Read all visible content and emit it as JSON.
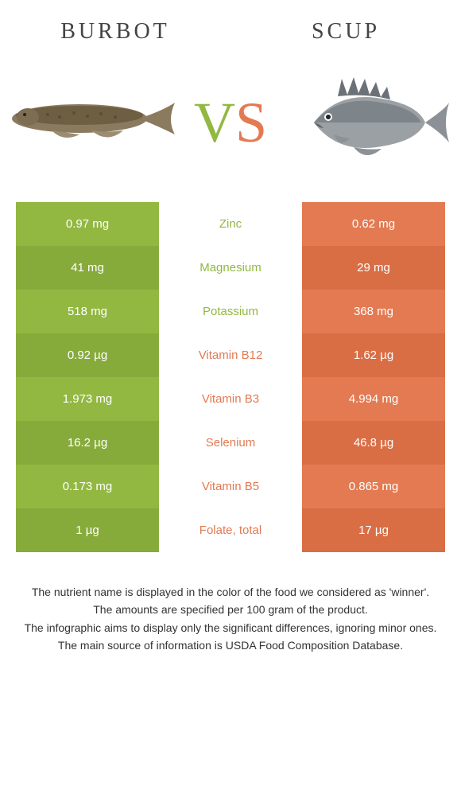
{
  "header": {
    "left": "Burbot",
    "right": "Scup"
  },
  "vs": {
    "v": "V",
    "s": "S"
  },
  "colors": {
    "left": "#92b841",
    "left_alt": "#87ab3b",
    "right": "#e37a52",
    "right_alt": "#d96e45",
    "v_color": "#92b841",
    "s_color": "#e37a52"
  },
  "rows": [
    {
      "left": "0.97 mg",
      "label": "Zinc",
      "right": "0.62 mg",
      "winner": "left"
    },
    {
      "left": "41 mg",
      "label": "Magnesium",
      "right": "29 mg",
      "winner": "left"
    },
    {
      "left": "518 mg",
      "label": "Potassium",
      "right": "368 mg",
      "winner": "left"
    },
    {
      "left": "0.92 µg",
      "label": "Vitamin B12",
      "right": "1.62 µg",
      "winner": "right"
    },
    {
      "left": "1.973 mg",
      "label": "Vitamin B3",
      "right": "4.994 mg",
      "winner": "right"
    },
    {
      "left": "16.2 µg",
      "label": "Selenium",
      "right": "46.8 µg",
      "winner": "right"
    },
    {
      "left": "0.173 mg",
      "label": "Vitamin B5",
      "right": "0.865 mg",
      "winner": "right"
    },
    {
      "left": "1 µg",
      "label": "Folate, total",
      "right": "17 µg",
      "winner": "right"
    }
  ],
  "footnotes": [
    "The nutrient name is displayed in the color of the food we considered as 'winner'.",
    "The amounts are specified per 100 gram of the product.",
    "The infographic aims to display only the significant differences, ignoring minor ones.",
    "The main source of information is USDA Food Composition Database."
  ]
}
